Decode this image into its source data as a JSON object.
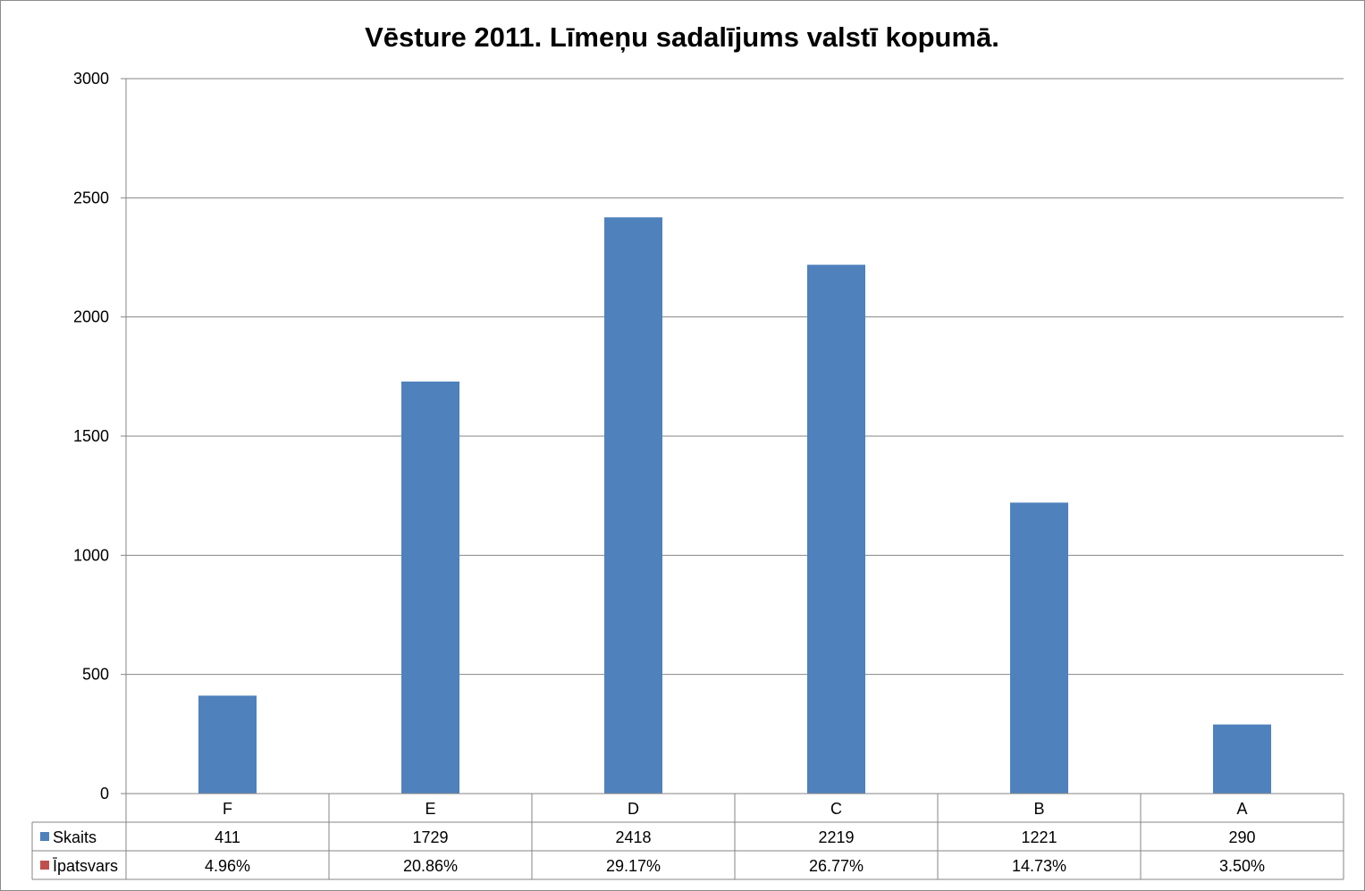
{
  "chart_data": {
    "type": "bar",
    "title": "Vēsture 2011. Līmeņu sadalījums valstī kopumā.",
    "categories": [
      "F",
      "E",
      "D",
      "C",
      "B",
      "A"
    ],
    "series": [
      {
        "name": "Skaits",
        "values": [
          411,
          1729,
          2418,
          2219,
          1221,
          290
        ],
        "color": "#4f81bd",
        "plotted": true
      },
      {
        "name": "Īpatsvars",
        "values": [
          "4.96%",
          "20.86%",
          "29.17%",
          "26.77%",
          "14.73%",
          "3.50%"
        ],
        "color": "#c0504d",
        "plotted": false
      }
    ],
    "ylim": [
      0,
      3000
    ],
    "yticks": [
      "0",
      "500",
      "1000",
      "1500",
      "2000",
      "2500",
      "3000"
    ],
    "grid": true,
    "legend": "data-table",
    "xlabel": "",
    "ylabel": ""
  }
}
